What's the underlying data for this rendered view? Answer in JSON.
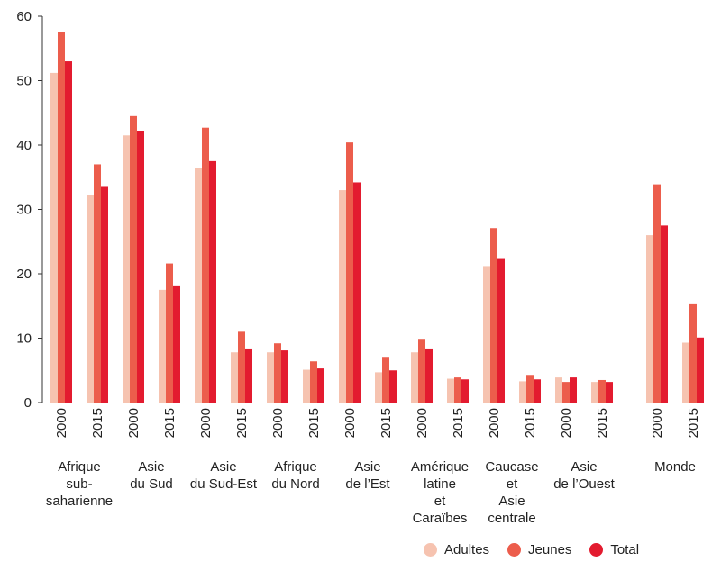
{
  "chart_data": {
    "type": "bar",
    "ylim": [
      0,
      60
    ],
    "yticks": [
      0,
      10,
      20,
      30,
      40,
      50,
      60
    ],
    "groups": [
      {
        "label": [
          "Afrique",
          "sub-",
          "saharienne"
        ],
        "bars": [
          {
            "year": "2000",
            "values": [
              51.2,
              57.5,
              53.0
            ]
          },
          {
            "year": "2015",
            "values": [
              32.2,
              37.0,
              33.5
            ]
          }
        ]
      },
      {
        "label": [
          "Asie",
          "du Sud"
        ],
        "bars": [
          {
            "year": "2000",
            "values": [
              41.5,
              44.5,
              42.2
            ]
          },
          {
            "year": "2015",
            "values": [
              17.5,
              21.6,
              18.2
            ]
          }
        ]
      },
      {
        "label": [
          "Asie",
          "du Sud-Est"
        ],
        "bars": [
          {
            "year": "2000",
            "values": [
              36.4,
              42.7,
              37.5
            ]
          },
          {
            "year": "2015",
            "values": [
              7.8,
              11.0,
              8.4
            ]
          }
        ]
      },
      {
        "label": [
          "Afrique",
          "du Nord"
        ],
        "bars": [
          {
            "year": "2000",
            "values": [
              7.8,
              9.2,
              8.1
            ]
          },
          {
            "year": "2015",
            "values": [
              5.1,
              6.4,
              5.3
            ]
          }
        ]
      },
      {
        "label": [
          "Asie",
          "de l’Est"
        ],
        "bars": [
          {
            "year": "2000",
            "values": [
              33.0,
              40.4,
              34.2
            ]
          },
          {
            "year": "2015",
            "values": [
              4.7,
              7.1,
              5.0
            ]
          }
        ]
      },
      {
        "label": [
          "Amérique",
          "latine",
          "et",
          "Caraïbes"
        ],
        "bars": [
          {
            "year": "2000",
            "values": [
              7.8,
              9.9,
              8.4
            ]
          },
          {
            "year": "2015",
            "values": [
              3.7,
              3.9,
              3.6
            ]
          }
        ]
      },
      {
        "label": [
          "Caucase",
          "et",
          "Asie",
          "centrale"
        ],
        "bars": [
          {
            "year": "2000",
            "values": [
              21.2,
              27.1,
              22.3
            ]
          },
          {
            "year": "2015",
            "values": [
              3.3,
              4.3,
              3.6
            ]
          }
        ]
      },
      {
        "label": [
          "Asie",
          "de l’Ouest"
        ],
        "bars": [
          {
            "year": "2000",
            "values": [
              3.9,
              3.2,
              3.9
            ]
          },
          {
            "year": "2015",
            "values": [
              3.2,
              3.5,
              3.2
            ]
          }
        ]
      },
      {
        "label": [
          "Monde"
        ],
        "bars": [
          {
            "year": "2000",
            "values": [
              26.0,
              33.9,
              27.5
            ]
          },
          {
            "year": "2015",
            "values": [
              9.3,
              15.4,
              10.1
            ]
          }
        ]
      }
    ],
    "series": [
      {
        "name": "Adultes",
        "color": "#f6c3b0"
      },
      {
        "name": "Jeunes",
        "color": "#ec5d4c"
      },
      {
        "name": "Total",
        "color": "#e31b2f"
      }
    ],
    "legend_position": "bottom-right"
  }
}
